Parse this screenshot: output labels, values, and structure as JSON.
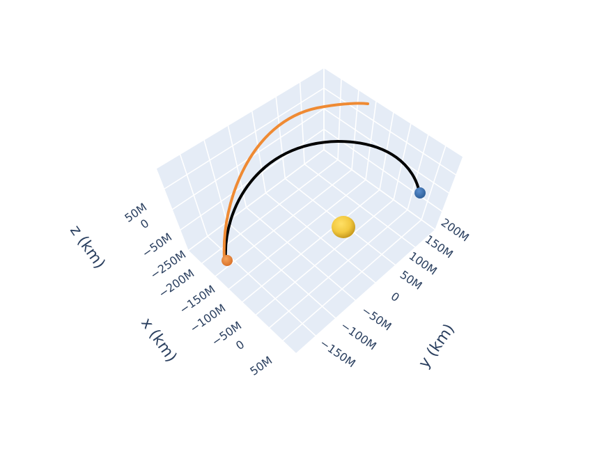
{
  "chart_data": {
    "type": "scatter3d",
    "axes": {
      "x": {
        "title": "x (km)",
        "ticks": [
          "50M",
          "0",
          "−50M",
          "−100M",
          "−150M",
          "−200M",
          "−250M"
        ]
      },
      "y": {
        "title": "y (km)",
        "ticks": [
          "200M",
          "150M",
          "100M",
          "50M",
          "0",
          "−50M",
          "−100M",
          "−150M"
        ]
      },
      "z": {
        "title": "z (km)",
        "ticks": [
          "50M",
          "0",
          "−50M"
        ]
      }
    },
    "grid": true,
    "background": "#e5ecf6",
    "gridcolor": "#ffffff",
    "series": [
      {
        "kind": "line",
        "color": "#000000",
        "note_unit": "km",
        "x": [
          -150000000,
          -130000000,
          -95000000,
          -55000000,
          -15000000,
          20000000,
          40000000
        ],
        "y": [
          -80000000,
          -40000000,
          10000000,
          60000000,
          110000000,
          160000000,
          200000000
        ],
        "z": [
          0,
          0,
          0,
          0,
          0,
          0,
          0
        ]
      },
      {
        "kind": "line",
        "color": "#ef8a33",
        "x": [
          -150000000,
          -145000000,
          -125000000,
          -95000000,
          -60000000,
          -20000000,
          10000000
        ],
        "y": [
          -80000000,
          -55000000,
          -25000000,
          0,
          20000000,
          35000000,
          45000000
        ],
        "z": [
          0,
          0,
          0,
          0,
          0,
          0,
          0
        ]
      },
      {
        "kind": "marker",
        "color": "#ef8a33",
        "x": [
          -150000000
        ],
        "y": [
          -80000000
        ],
        "z": [
          0
        ]
      },
      {
        "kind": "marker",
        "color": "#3a6ea5",
        "x": [
          40000000
        ],
        "y": [
          200000000
        ],
        "z": [
          0
        ]
      },
      {
        "kind": "marker",
        "color": "#f2c940",
        "x": [
          0
        ],
        "y": [
          0
        ],
        "z": [
          0
        ]
      }
    ]
  }
}
